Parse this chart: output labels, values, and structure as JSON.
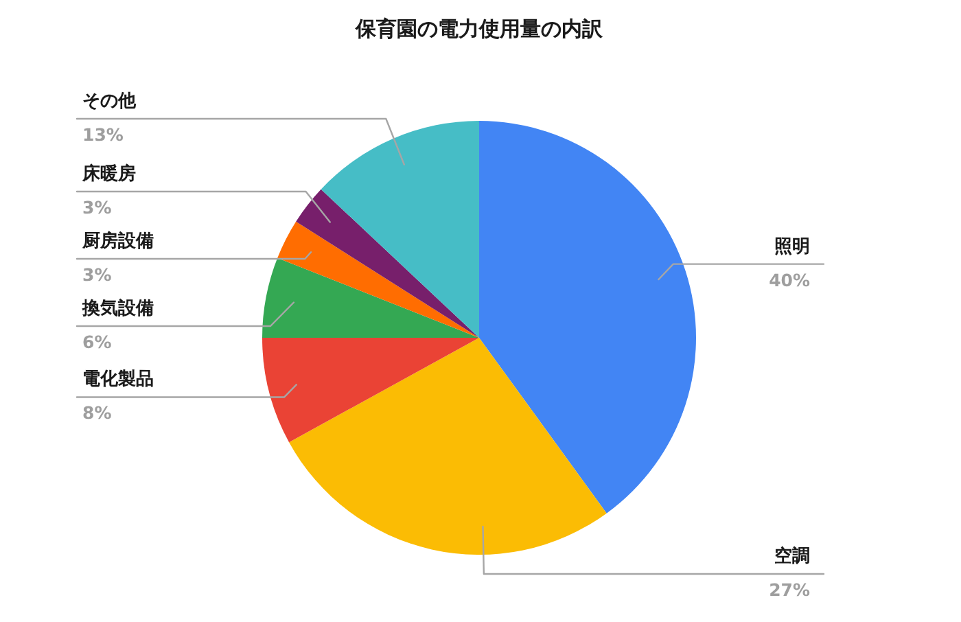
{
  "chart_data": {
    "type": "pie",
    "title": "保育園の電力使用量の内訳",
    "categories": [
      "照明",
      "空調",
      "電化製品",
      "換気設備",
      "厨房設備",
      "床暖房",
      "その他"
    ],
    "values": [
      40,
      27,
      8,
      6,
      3,
      3,
      13
    ],
    "colors": [
      "#4285f4",
      "#fbbc04",
      "#ea4335",
      "#34a853",
      "#ff6d01",
      "#771f6b",
      "#46bdc6"
    ],
    "value_labels": [
      "40%",
      "27%",
      "8%",
      "6%",
      "3%",
      "3%",
      "13%"
    ]
  }
}
